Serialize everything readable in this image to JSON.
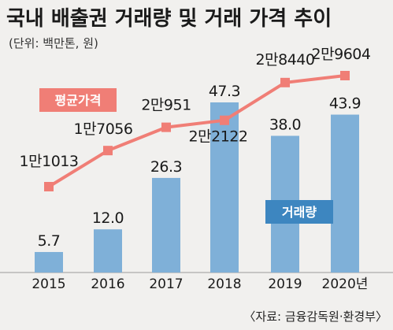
{
  "chart_data": {
    "type": "bar+line",
    "title": "국내 배출권 거래량 및 거래 가격 추이",
    "subtitle": "(단위: 백만톤, 원)",
    "categories": [
      "2015",
      "2016",
      "2017",
      "2018",
      "2019",
      "2020년"
    ],
    "series": [
      {
        "name": "거래량",
        "type": "bar",
        "color": "#7fb0d8",
        "values": [
          5.7,
          12.0,
          26.3,
          47.3,
          38.0,
          43.9
        ],
        "labels": [
          "5.7",
          "12.0",
          "26.3",
          "47.3",
          "38.0",
          "43.9"
        ]
      },
      {
        "name": "평균가격",
        "type": "line",
        "color": "#f07e76",
        "values": [
          11013,
          17056,
          20951,
          22122,
          28440,
          29604
        ],
        "labels": [
          "1만1013",
          "1만7056",
          "2만951",
          "2만2122",
          "2만8440",
          "2만9604"
        ]
      }
    ],
    "source": "〈자료: 금융감독원·환경부〉"
  }
}
